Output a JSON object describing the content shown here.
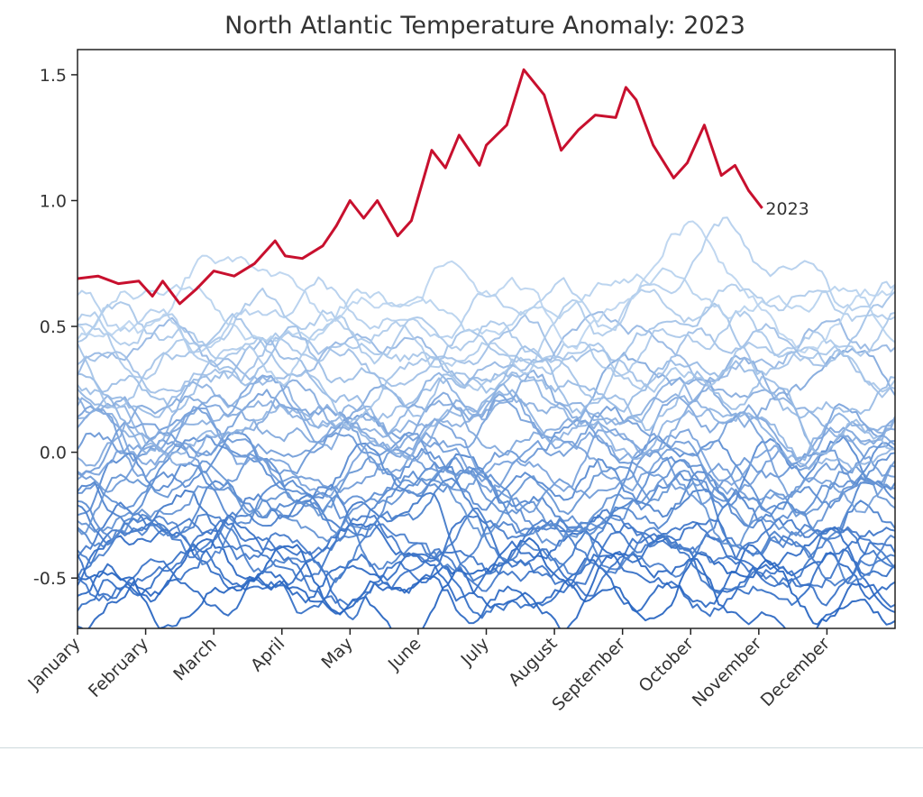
{
  "chart_data": {
    "type": "line",
    "title": "North Atlantic Temperature Anomaly: 2023",
    "xlabel": "",
    "ylabel": "",
    "xlim": [
      0,
      12
    ],
    "ylim": [
      -0.7,
      1.6
    ],
    "x_ticks": [
      0,
      1,
      2,
      3,
      4,
      5,
      6,
      7,
      8,
      9,
      10,
      11
    ],
    "x_tick_labels": [
      "January",
      "February",
      "March",
      "April",
      "May",
      "June",
      "July",
      "August",
      "September",
      "October",
      "November",
      "December"
    ],
    "y_ticks": [
      -0.5,
      0.0,
      0.5,
      1.0,
      1.5
    ],
    "y_tick_labels": [
      "-0.5",
      "0.0",
      "0.5",
      "1.0",
      "1.5"
    ],
    "grid": false,
    "highlight_series": {
      "name": "2023",
      "color": "#c8102e",
      "x": [
        0.0,
        0.3,
        0.6,
        0.9,
        1.1,
        1.25,
        1.5,
        1.75,
        2.0,
        2.3,
        2.6,
        2.9,
        3.05,
        3.3,
        3.6,
        3.8,
        4.0,
        4.2,
        4.4,
        4.7,
        4.9,
        5.2,
        5.4,
        5.6,
        5.9,
        6.0,
        6.3,
        6.55,
        6.85,
        7.1,
        7.35,
        7.6,
        7.9,
        8.05,
        8.2,
        8.45,
        8.75,
        8.95,
        9.2,
        9.45,
        9.65,
        9.85,
        10.05
      ],
      "y": [
        0.69,
        0.7,
        0.67,
        0.68,
        0.62,
        0.68,
        0.59,
        0.65,
        0.72,
        0.7,
        0.75,
        0.84,
        0.78,
        0.77,
        0.82,
        0.9,
        1.0,
        0.93,
        1.0,
        0.86,
        0.92,
        1.2,
        1.13,
        1.26,
        1.14,
        1.22,
        1.3,
        1.52,
        1.42,
        1.2,
        1.28,
        1.34,
        1.33,
        1.45,
        1.4,
        1.22,
        1.09,
        1.15,
        1.3,
        1.1,
        1.14,
        1.04,
        0.97
      ]
    },
    "annotations": [
      {
        "text": "2023",
        "x": 10.1,
        "y": 0.97
      }
    ],
    "background_series": {
      "count": 40,
      "color_range": [
        "#1f5fbf",
        "#b9d3ee"
      ],
      "y_range": [
        -0.7,
        0.97
      ]
    }
  }
}
